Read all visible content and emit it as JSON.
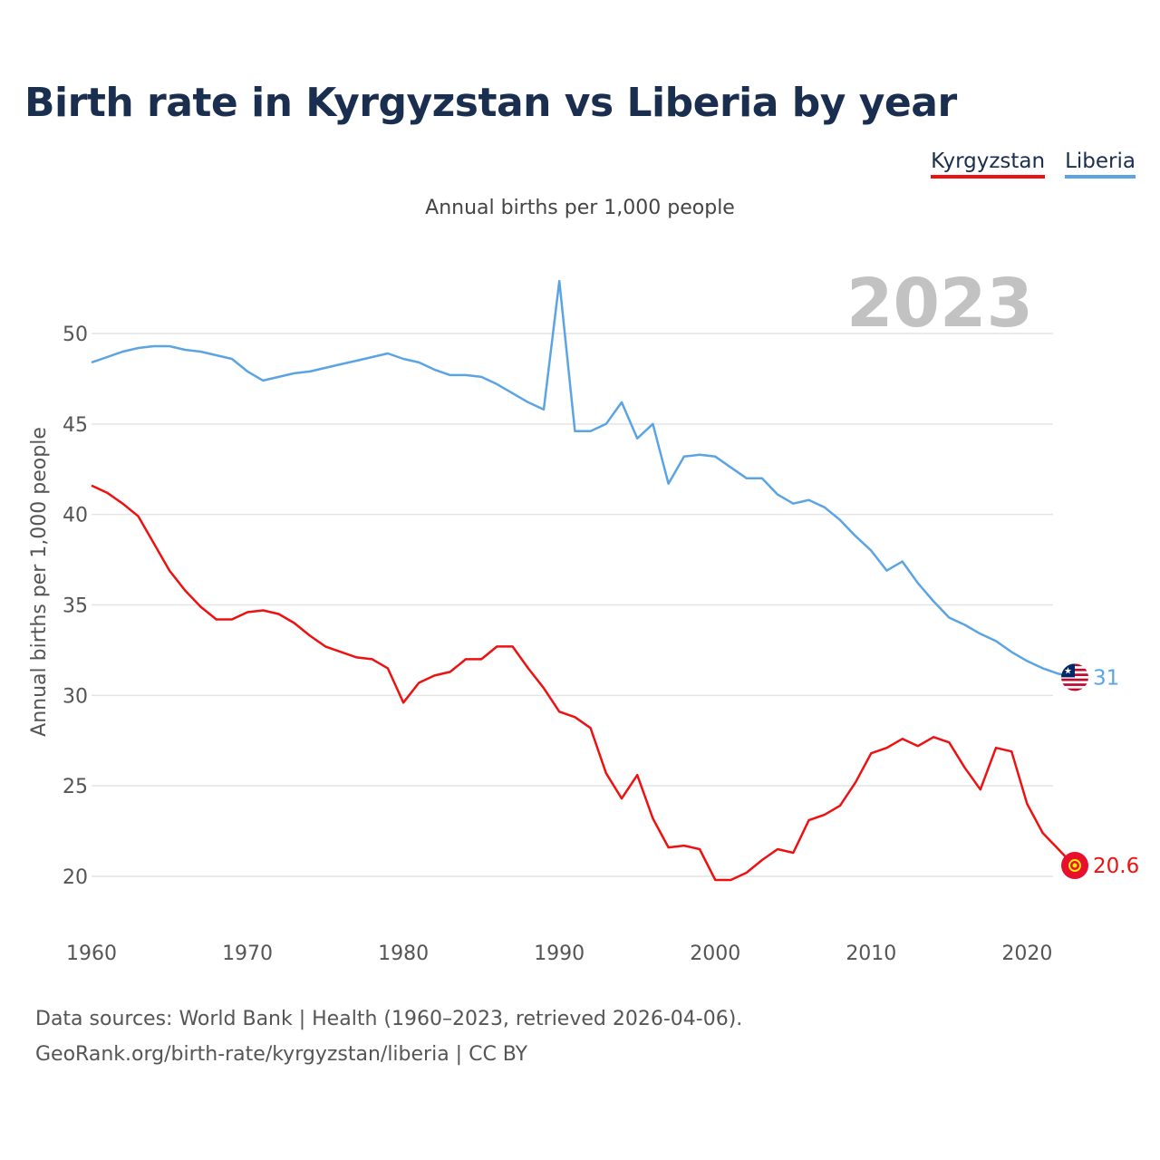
{
  "title": "Birth rate in Kyrgyzstan vs Liberia by year",
  "subtitle": "Annual births per 1,000 people",
  "legend": [
    {
      "label": "Kyrgyzstan",
      "color": "#ee1111"
    },
    {
      "label": "Liberia",
      "color": "#5ba4e3"
    }
  ],
  "year_label": "2023",
  "footer": {
    "line1": "Data sources: World Bank | Health (1960–2023, retrieved 2026-04-06).",
    "line2": "GeoRank.org/birth-rate/kyrgyzstan/liberia | CC BY"
  },
  "chart_data": {
    "type": "line",
    "title": "Birth rate in Kyrgyzstan vs Liberia by year",
    "xlabel": "",
    "ylabel": "Annual births per 1,000 people",
    "xlim": [
      1960,
      2023
    ],
    "ylim": [
      20,
      53
    ],
    "x_ticks": [
      "1960",
      "1970",
      "1980",
      "1990",
      "2000",
      "2010",
      "2020"
    ],
    "y_ticks": [
      "20",
      "25",
      "30",
      "35",
      "40",
      "45",
      "50"
    ],
    "grid": true,
    "x": [
      1960,
      1961,
      1962,
      1963,
      1964,
      1965,
      1966,
      1967,
      1968,
      1969,
      1970,
      1971,
      1972,
      1973,
      1974,
      1975,
      1976,
      1977,
      1978,
      1979,
      1980,
      1981,
      1982,
      1983,
      1984,
      1985,
      1986,
      1987,
      1988,
      1989,
      1990,
      1991,
      1992,
      1993,
      1994,
      1995,
      1996,
      1997,
      1998,
      1999,
      2000,
      2001,
      2002,
      2003,
      2004,
      2005,
      2006,
      2007,
      2008,
      2009,
      2010,
      2011,
      2012,
      2013,
      2014,
      2015,
      2016,
      2017,
      2018,
      2019,
      2020,
      2021,
      2022,
      2023
    ],
    "series": [
      {
        "name": "Kyrgyzstan",
        "color": "#ee1111",
        "end_label": "20.6",
        "values": [
          41.6,
          41.2,
          40.6,
          39.9,
          38.4,
          36.9,
          35.8,
          34.9,
          34.2,
          34.2,
          34.6,
          34.7,
          34.5,
          34.0,
          33.3,
          32.7,
          32.4,
          32.1,
          32.0,
          31.5,
          29.6,
          30.7,
          31.1,
          31.3,
          32.0,
          32.0,
          32.7,
          32.7,
          31.5,
          30.4,
          29.1,
          28.8,
          28.2,
          25.7,
          24.3,
          25.6,
          23.2,
          21.6,
          21.7,
          21.5,
          19.8,
          19.8,
          20.2,
          20.9,
          21.5,
          21.3,
          23.1,
          23.4,
          23.9,
          25.2,
          26.8,
          27.1,
          27.6,
          27.2,
          27.7,
          27.4,
          26.0,
          24.8,
          27.1,
          26.9,
          24.0,
          22.4,
          21.5,
          20.6
        ]
      },
      {
        "name": "Liberia",
        "color": "#5ba4e3",
        "end_label": "31",
        "values": [
          48.4,
          48.7,
          49.0,
          49.2,
          49.3,
          49.3,
          49.1,
          49.0,
          48.8,
          48.6,
          47.9,
          47.4,
          47.6,
          47.8,
          47.9,
          48.1,
          48.3,
          48.5,
          48.7,
          48.9,
          48.6,
          48.4,
          48.0,
          47.7,
          47.7,
          47.6,
          47.2,
          46.7,
          46.2,
          45.8,
          52.9,
          44.6,
          44.6,
          45.0,
          46.2,
          44.2,
          45.0,
          41.7,
          43.2,
          43.3,
          43.2,
          42.6,
          42.0,
          42.0,
          41.1,
          40.6,
          40.8,
          40.4,
          39.7,
          38.8,
          38.0,
          36.9,
          37.4,
          36.2,
          35.2,
          34.3,
          33.9,
          33.4,
          33.0,
          32.4,
          31.9,
          31.5,
          31.2,
          31.0
        ]
      }
    ]
  }
}
